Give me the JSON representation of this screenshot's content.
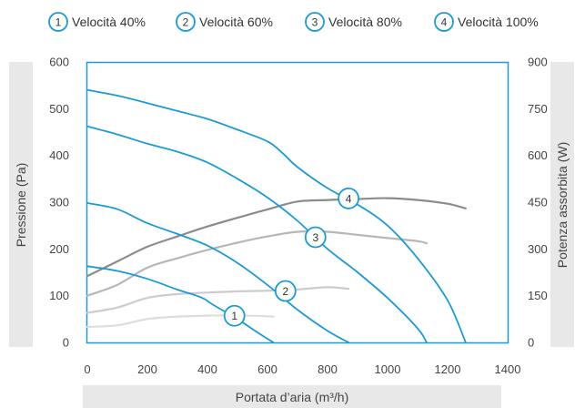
{
  "chart_data": {
    "type": "line",
    "x_label": "Portata d’aria (m³/h)",
    "y_left_label": "Pressione (Pa)",
    "y_right_label": "Potenza assorbita (W)",
    "xlim": [
      0,
      1400
    ],
    "ylim_left": [
      0,
      600
    ],
    "ylim_right": [
      0,
      900
    ],
    "x_ticks": [
      0,
      200,
      400,
      600,
      800,
      1000,
      1200,
      1400
    ],
    "y_left_ticks": [
      0,
      100,
      200,
      300,
      400,
      500,
      600
    ],
    "y_right_ticks": [
      0,
      150,
      300,
      450,
      600,
      750,
      900
    ],
    "grid": false,
    "legend_position": "top",
    "legend": [
      {
        "marker": "1",
        "label": "Velocità 40%"
      },
      {
        "marker": "2",
        "label": "Velocità 60%"
      },
      {
        "marker": "3",
        "label": "Velocità 80%"
      },
      {
        "marker": "4",
        "label": "Velocità 100%"
      }
    ],
    "pressure_series": [
      {
        "marker": "1",
        "color": "#1a9bd7",
        "points": [
          [
            0,
            163
          ],
          [
            100,
            153
          ],
          [
            200,
            136
          ],
          [
            300,
            113
          ],
          [
            380,
            96
          ],
          [
            420,
            80
          ],
          [
            500,
            50
          ],
          [
            570,
            20
          ],
          [
            620,
            0
          ]
        ]
      },
      {
        "marker": "2",
        "color": "#1a9bd7",
        "points": [
          [
            0,
            298
          ],
          [
            100,
            285
          ],
          [
            200,
            255
          ],
          [
            300,
            232
          ],
          [
            400,
            207
          ],
          [
            500,
            170
          ],
          [
            600,
            123
          ],
          [
            700,
            70
          ],
          [
            800,
            25
          ],
          [
            870,
            0
          ]
        ]
      },
      {
        "marker": "3",
        "color": "#1a9bd7",
        "points": [
          [
            0,
            462
          ],
          [
            100,
            445
          ],
          [
            200,
            425
          ],
          [
            300,
            408
          ],
          [
            400,
            385
          ],
          [
            500,
            350
          ],
          [
            600,
            310
          ],
          [
            700,
            260
          ],
          [
            800,
            200
          ],
          [
            900,
            150
          ],
          [
            1000,
            95
          ],
          [
            1100,
            30
          ],
          [
            1130,
            0
          ]
        ]
      },
      {
        "marker": "4",
        "color": "#1a9bd7",
        "points": [
          [
            0,
            540
          ],
          [
            100,
            528
          ],
          [
            200,
            512
          ],
          [
            300,
            495
          ],
          [
            400,
            478
          ],
          [
            500,
            455
          ],
          [
            600,
            430
          ],
          [
            650,
            405
          ],
          [
            700,
            375
          ],
          [
            800,
            330
          ],
          [
            900,
            295
          ],
          [
            1000,
            250
          ],
          [
            1100,
            180
          ],
          [
            1200,
            90
          ],
          [
            1260,
            0
          ]
        ]
      }
    ],
    "power_series": [
      {
        "marker": "1",
        "color": "#dddddd",
        "points": [
          [
            0,
            50
          ],
          [
            100,
            55
          ],
          [
            200,
            75
          ],
          [
            300,
            83
          ],
          [
            400,
            86
          ],
          [
            500,
            87
          ],
          [
            620,
            83
          ]
        ]
      },
      {
        "marker": "2",
        "color": "#cccccc",
        "points": [
          [
            0,
            95
          ],
          [
            100,
            112
          ],
          [
            200,
            143
          ],
          [
            300,
            155
          ],
          [
            400,
            160
          ],
          [
            500,
            164
          ],
          [
            600,
            166
          ],
          [
            700,
            170
          ],
          [
            800,
            177
          ],
          [
            870,
            172
          ]
        ]
      },
      {
        "marker": "3",
        "color": "#b7b7b7",
        "points": [
          [
            0,
            150
          ],
          [
            100,
            185
          ],
          [
            200,
            240
          ],
          [
            300,
            270
          ],
          [
            400,
            297
          ],
          [
            500,
            320
          ],
          [
            600,
            340
          ],
          [
            700,
            355
          ],
          [
            800,
            355
          ],
          [
            900,
            345
          ],
          [
            1000,
            335
          ],
          [
            1100,
            325
          ],
          [
            1130,
            318
          ]
        ]
      },
      {
        "marker": "4",
        "color": "#8c8c8c",
        "points": [
          [
            0,
            213
          ],
          [
            100,
            260
          ],
          [
            200,
            307
          ],
          [
            300,
            340
          ],
          [
            400,
            372
          ],
          [
            500,
            400
          ],
          [
            600,
            427
          ],
          [
            700,
            452
          ],
          [
            800,
            457
          ],
          [
            900,
            460
          ],
          [
            1000,
            463
          ],
          [
            1100,
            457
          ],
          [
            1200,
            445
          ],
          [
            1260,
            430
          ]
        ]
      }
    ],
    "curve_markers": [
      {
        "marker": "1",
        "x": 490,
        "y": 57
      },
      {
        "marker": "2",
        "x": 660,
        "y": 110
      },
      {
        "marker": "3",
        "x": 760,
        "y": 225
      },
      {
        "marker": "4",
        "x": 870,
        "y": 308
      }
    ],
    "colors": {
      "accent": "#1a9bd7",
      "band": "#e8e8e8",
      "axis": "#1a9bd7"
    }
  }
}
